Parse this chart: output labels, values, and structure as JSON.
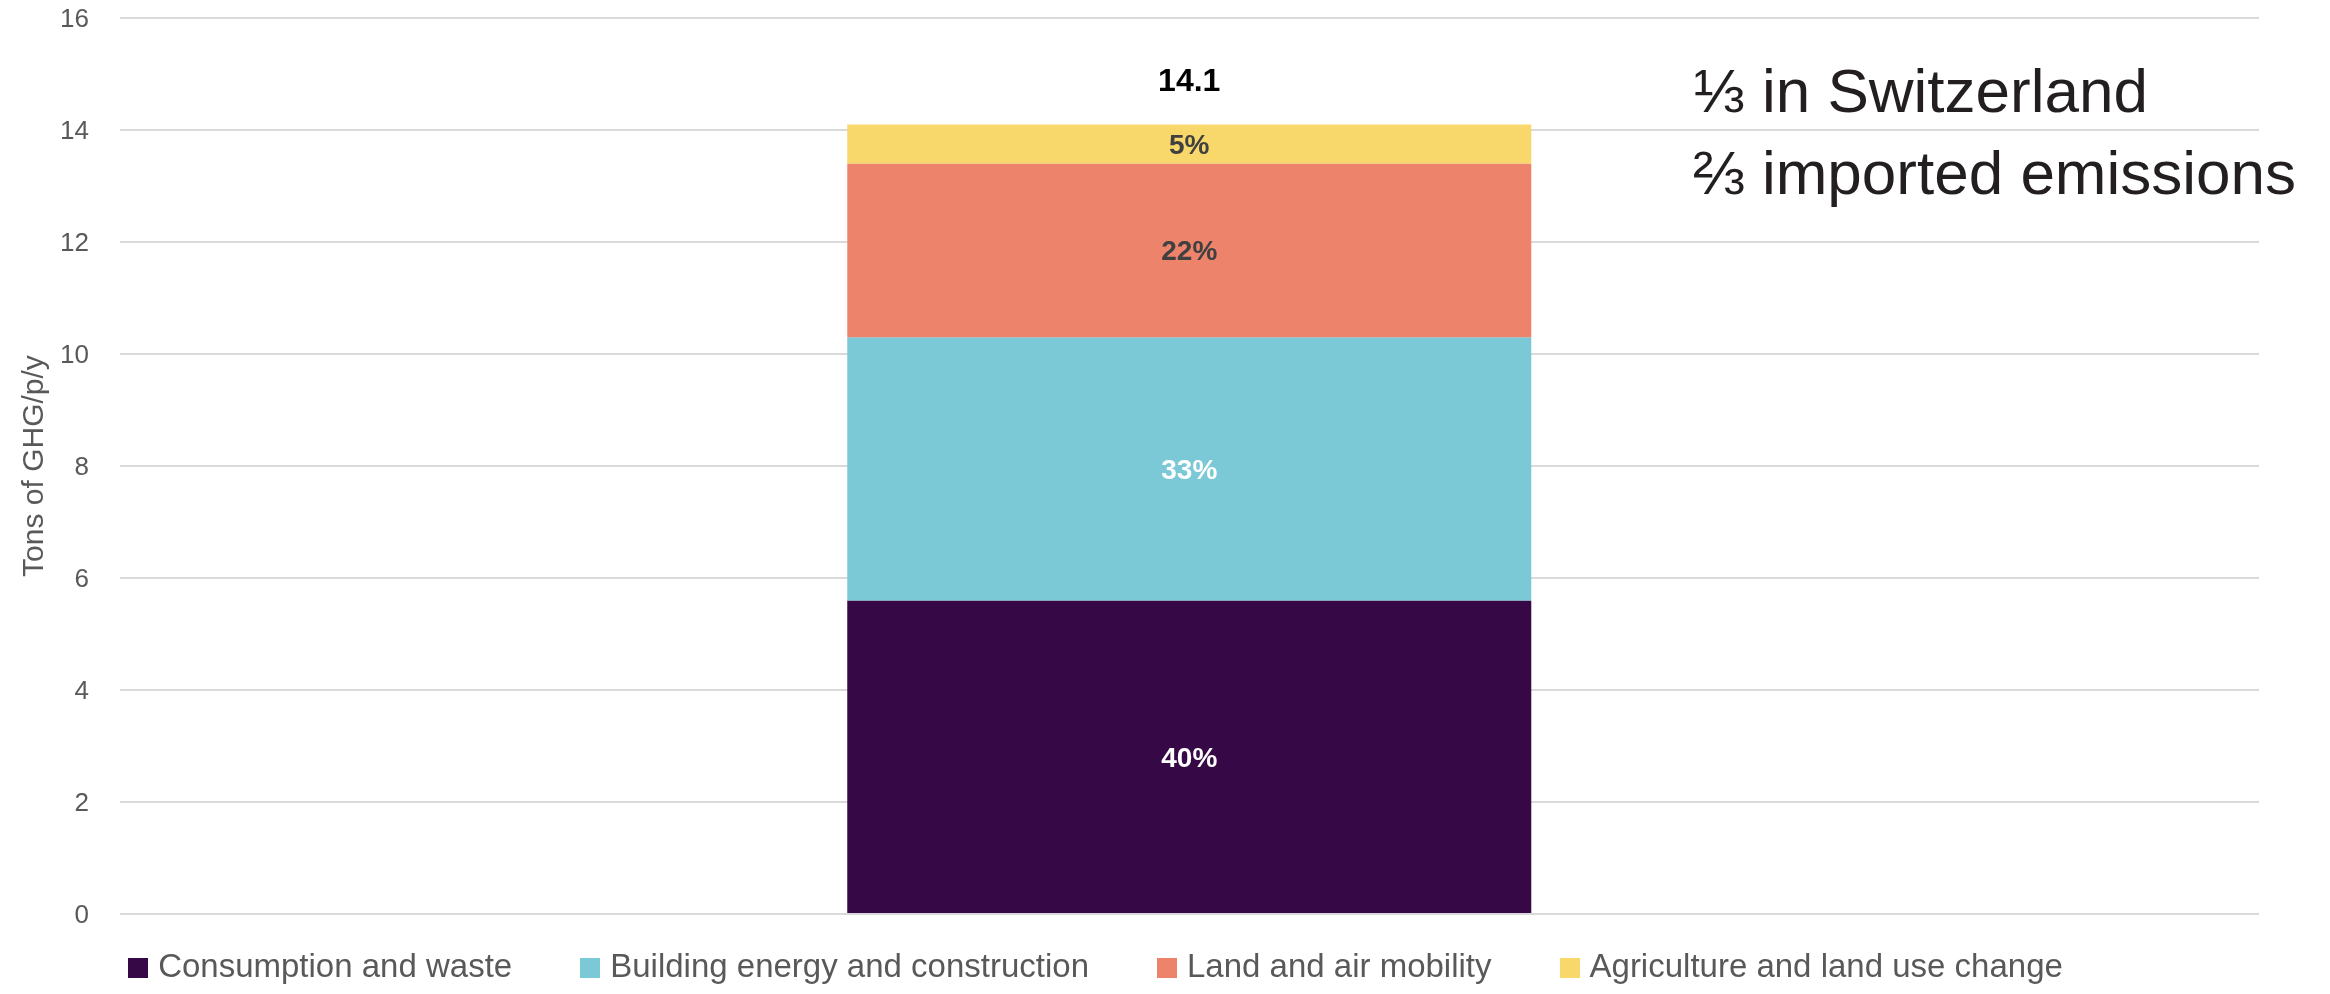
{
  "chart_data": {
    "type": "bar",
    "stacked": true,
    "categories": [
      null
    ],
    "ylabel": "Tons of GHG/p/y",
    "ylim": [
      0,
      16
    ],
    "yticks": [
      0,
      2,
      4,
      6,
      8,
      10,
      12,
      14,
      16
    ],
    "grid": "y",
    "legend": "bottom",
    "series": [
      {
        "name": "Consumption and waste",
        "color": "#360845",
        "values": [
          5.6
        ]
      },
      {
        "name": "Building energy and construction",
        "color": "#7bc8d6",
        "values": [
          4.7
        ]
      },
      {
        "name": "Land and air mobility",
        "color": "#ee836b",
        "values": [
          3.1
        ]
      },
      {
        "name": "Agriculture and land use change",
        "color": "#f8d76b",
        "values": [
          0.7
        ]
      }
    ],
    "totals": [
      "14.1"
    ],
    "annotations": [
      "⅓ in Switzerland",
      "⅔ imported emissions",
      "40%",
      "33%",
      "22%",
      "5%"
    ]
  }
}
